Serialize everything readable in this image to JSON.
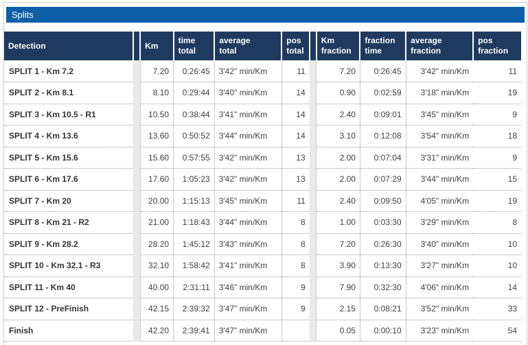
{
  "panel": {
    "title": "Splits"
  },
  "colors": {
    "title_bar_bg": "#0d5fa6",
    "table_header_bg": "#1e3a5e",
    "separator_column_bg": "#e9e9e9",
    "panel_border": "#cccccc",
    "cell_border": "#cccccc",
    "dotted_row_border": "#999999",
    "body_text": "#404040",
    "detection_text": "#333333",
    "header_text": "#ffffff"
  },
  "table": {
    "columns": [
      "Detection",
      "",
      "Km",
      "time\ntotal",
      "average\ntotal",
      "pos\ntotal",
      "",
      "Km\nfraction",
      "fraction\ntime",
      "average\nfraction",
      "pos\nfraction"
    ],
    "rows": [
      [
        "SPLIT 1 - Km 7.2",
        "7.20",
        "0:26:45",
        "3'42\" min/Km",
        "11",
        "7.20",
        "0:26:45",
        "3'42\" min/Km",
        "11"
      ],
      [
        "SPLIT 2 - Km 8.1",
        "8.10",
        "0:29:44",
        "3'40\" min/Km",
        "14",
        "0.90",
        "0:02:59",
        "3'18\" min/Km",
        "19"
      ],
      [
        "SPLIT 3 - Km 10.5 - R1",
        "10.50",
        "0:38:44",
        "3'41\" min/Km",
        "14",
        "2.40",
        "0:09:01",
        "3'45\" min/Km",
        "9"
      ],
      [
        "SPLIT 4 - Km 13.6",
        "13.60",
        "0:50:52",
        "3'44\" min/Km",
        "14",
        "3.10",
        "0:12:08",
        "3'54\" min/Km",
        "18"
      ],
      [
        "SPLIT 5 - Km 15.6",
        "15.60",
        "0:57:55",
        "3'42\" min/Km",
        "13",
        "2.00",
        "0:07:04",
        "3'31\" min/Km",
        "9"
      ],
      [
        "SPLIT 6 - Km 17.6",
        "17.60",
        "1:05:23",
        "3'42\" min/Km",
        "13",
        "2.00",
        "0:07:29",
        "3'44\" min/Km",
        "15"
      ],
      [
        "SPLIT 7 - Km 20",
        "20.00",
        "1:15:13",
        "3'45\" min/Km",
        "11",
        "2.40",
        "0:09:50",
        "4'05\" min/Km",
        "19"
      ],
      [
        "SPLIT 8 - Km 21 - R2",
        "21.00",
        "1:18:43",
        "3'44\" min/Km",
        "8",
        "1.00",
        "0:03:30",
        "3'29\" min/Km",
        "8"
      ],
      [
        "SPLIT 9 - Km 28.2",
        "28.20",
        "1:45:12",
        "3'43\" min/Km",
        "8",
        "7.20",
        "0:26:30",
        "3'40\" min/Km",
        "10"
      ],
      [
        "SPLIT 10 - Km 32.1 - R3",
        "32.10",
        "1:58:42",
        "3'41\" min/Km",
        "8",
        "3.90",
        "0:13:30",
        "3'27\" min/Km",
        "10"
      ],
      [
        "SPLIT 11 - Km 40",
        "40.00",
        "2:31:11",
        "3'46\" min/Km",
        "9",
        "7.90",
        "0:32:30",
        "4'06\" min/Km",
        "14"
      ],
      [
        "SPLIT 12 - PreFinish",
        "42.15",
        "2:39:32",
        "3'47\" min/Km",
        "9",
        "2.15",
        "0:08:21",
        "3'52\" min/Km",
        "33"
      ],
      [
        "Finish",
        "42.20",
        "2:39:41",
        "3'47\" min/Km",
        "",
        "0.05",
        "0:00:10",
        "3'23\" min/Km",
        "54"
      ]
    ]
  }
}
